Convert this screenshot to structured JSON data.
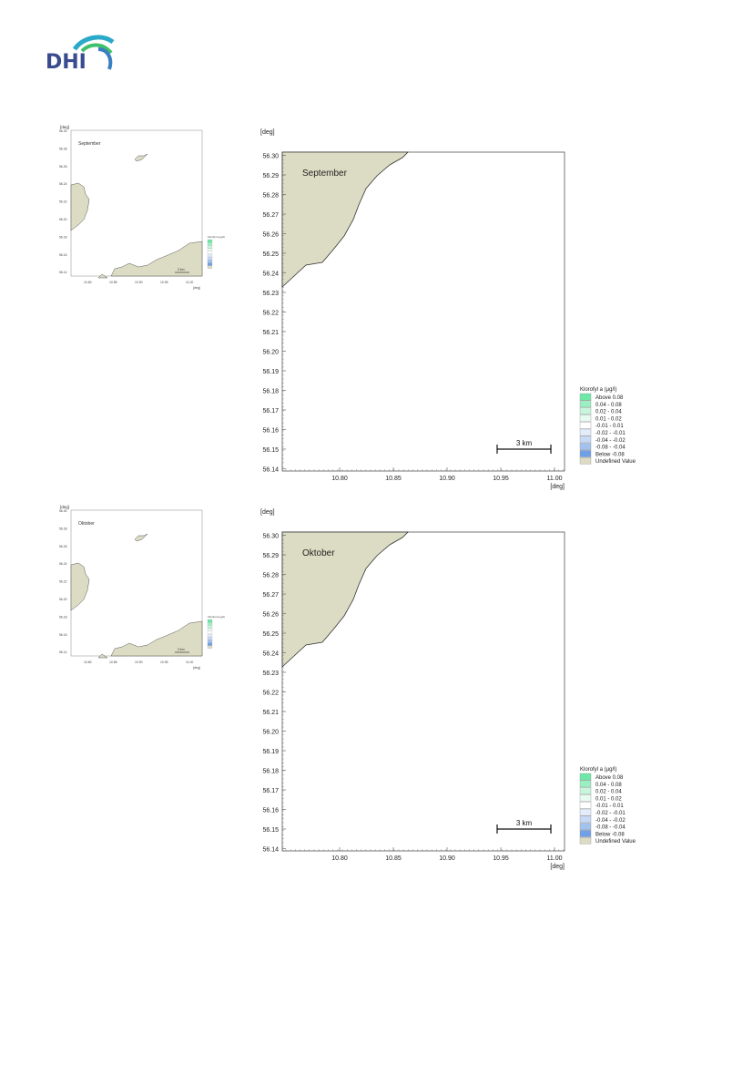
{
  "logo": {
    "text": "DHI"
  },
  "colors": {
    "land": "#dcdcc4",
    "land_stroke": "#333333",
    "above_0_08": "#6ee8a6",
    "r_0_04_0_08": "#9af0c2",
    "r_0_02_0_04": "#c7f6dd",
    "r_0_01_0_02": "#e8fbf1",
    "r_m0_01_0_01": "#ffffff",
    "r_m0_02_m0_01": "#e3ecfa",
    "r_m0_04_m0_02": "#c6d9f5",
    "r_m0_08_m0_04": "#a3c2ef",
    "below_m0_08": "#6f9fe6",
    "undefined": "#dcdcc4"
  },
  "maps": [
    {
      "month": "September",
      "thumb_label": "September",
      "axis_unit": "[deg]",
      "y_ticks": [
        "56.30",
        "56.29",
        "56.28",
        "56.27",
        "56.26",
        "56.25",
        "56.24",
        "56.23",
        "56.22",
        "56.21",
        "56.20",
        "56.19",
        "56.18",
        "56.17",
        "56.16",
        "56.15",
        "56.14"
      ],
      "x_ticks": [
        "10.80",
        "10.85",
        "10.90",
        "10.95",
        "11.00"
      ],
      "scale_label": "3 km",
      "legend_title": "Klorofyl a (µg/l)",
      "legend": [
        "Above  0.08",
        "0.04 -  0.08",
        "0.02 -  0.04",
        "0.01 -  0.02",
        "-0.01 -  0.01",
        "-0.02 - -0.01",
        "-0.04 - -0.02",
        "-0.08 - -0.04",
        "Below -0.08",
        "Undefined Value"
      ]
    },
    {
      "month": "Oktober",
      "thumb_label": "Oktober",
      "axis_unit": "[deg]",
      "y_ticks": [
        "56.30",
        "56.29",
        "56.28",
        "56.27",
        "56.26",
        "56.25",
        "56.24",
        "56.23",
        "56.22",
        "56.21",
        "56.20",
        "56.19",
        "56.18",
        "56.17",
        "56.16",
        "56.15",
        "56.14"
      ],
      "x_ticks": [
        "10.80",
        "10.85",
        "10.90",
        "10.95",
        "11.00"
      ],
      "scale_label": "3 km",
      "legend_title": "Klorofyl a (µg/l)",
      "legend": [
        "Above  0.08",
        "0.04 -  0.08",
        "0.02 -  0.04",
        "0.01 -  0.02",
        "-0.01 -  0.01",
        "-0.02 - -0.01",
        "-0.04 - -0.02",
        "-0.08 - -0.04",
        "Below -0.08",
        "Undefined Value"
      ]
    }
  ]
}
